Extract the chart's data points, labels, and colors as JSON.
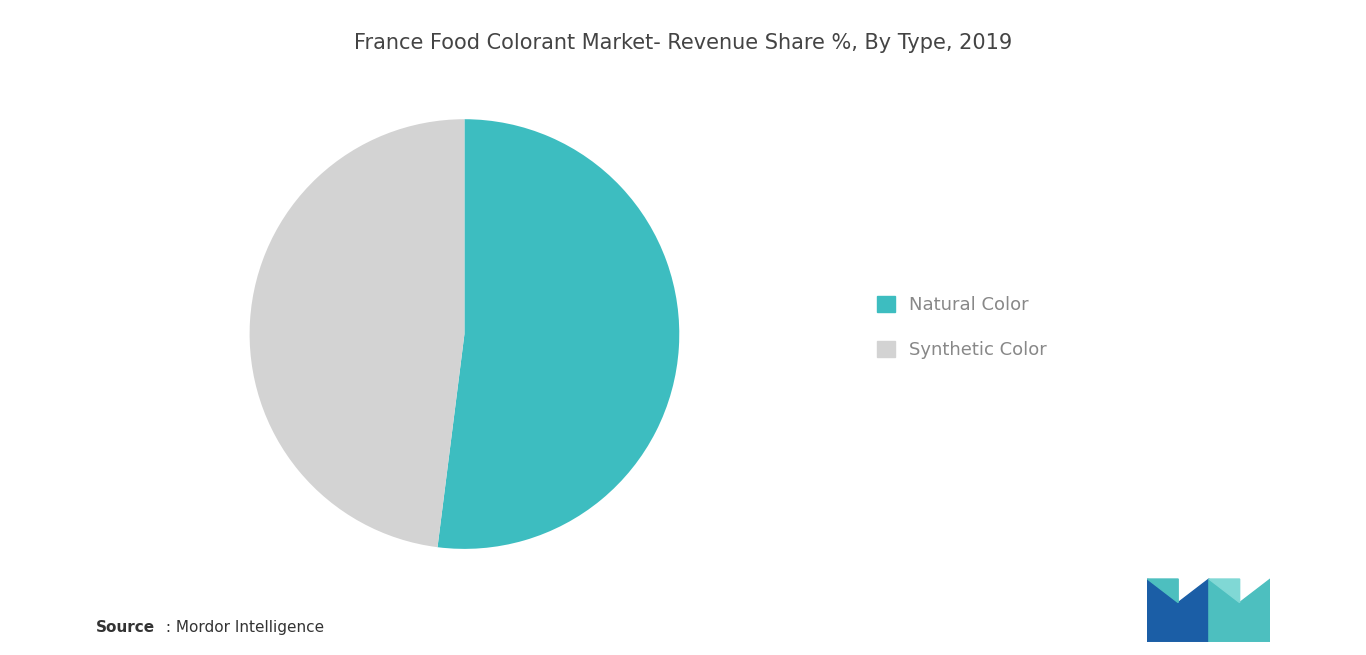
{
  "title": "France Food Colorant Market- Revenue Share %, By Type, 2019",
  "slices": [
    52,
    48
  ],
  "labels": [
    "Natural Color",
    "Synthetic Color"
  ],
  "colors": [
    "#3DBDC0",
    "#D3D3D3"
  ],
  "start_angle": 90,
  "background_color": "#FFFFFF",
  "source_bold": "Source",
  "source_rest": " : Mordor Intelligence",
  "title_fontsize": 15,
  "legend_fontsize": 13
}
